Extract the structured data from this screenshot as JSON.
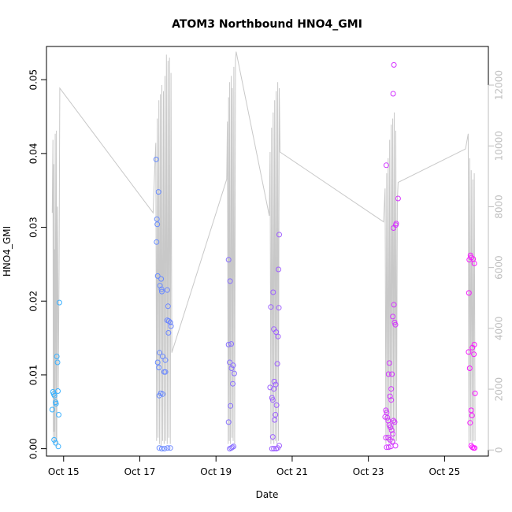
{
  "chart_data": {
    "type": "scatter",
    "title": "ATOM3 Northbound HNO4_GMI",
    "xlabel": "Date",
    "ylabel": "HNO4_GMI",
    "xlim": [
      14.55,
      26.15
    ],
    "ylim": [
      -0.001,
      0.0545
    ],
    "y2lim": [
      -200,
      13270
    ],
    "x_tick_labels": [
      "Oct 15",
      "Oct 17",
      "Oct 19",
      "Oct 21",
      "Oct 23",
      "Oct 25"
    ],
    "x_tick_values": [
      15,
      17,
      19,
      21,
      23,
      25
    ],
    "y_tick_labels": [
      "0.00",
      "0.01",
      "0.02",
      "0.03",
      "0.04",
      "0.05"
    ],
    "y_tick_values": [
      0,
      0.01,
      0.02,
      0.03,
      0.04,
      0.05
    ],
    "y2_tick_labels": [
      "0",
      "2000",
      "4000",
      "6000",
      "8000",
      "10000",
      "12000"
    ],
    "y2_tick_values": [
      0,
      2000,
      4000,
      6000,
      8000,
      10000,
      12000
    ],
    "colors": {
      "altitude_line": "#c8c8c8",
      "right_axis": "#bebebe",
      "point_start": "#35b5ff",
      "point_end": "#ff10ff"
    },
    "series": [
      {
        "name": "HNO4_GMI",
        "points": [
          [
            14.72,
            0.0077
          ],
          [
            14.74,
            0.0074
          ],
          [
            14.76,
            0.0072
          ],
          [
            14.7,
            0.0053
          ],
          [
            14.79,
            0.0063
          ],
          [
            14.8,
            0.0061
          ],
          [
            14.82,
            0.0125
          ],
          [
            14.84,
            0.0117
          ],
          [
            14.85,
            0.0078
          ],
          [
            14.87,
            0.0046
          ],
          [
            14.89,
            0.0198
          ],
          [
            14.75,
            0.0012
          ],
          [
            14.79,
            0.0008
          ],
          [
            14.86,
            0.0003
          ],
          [
            17.43,
            0.0392
          ],
          [
            17.45,
            0.0311
          ],
          [
            17.46,
            0.0304
          ],
          [
            17.44,
            0.028
          ],
          [
            17.49,
            0.0348
          ],
          [
            17.47,
            0.0234
          ],
          [
            17.56,
            0.023
          ],
          [
            17.53,
            0.0221
          ],
          [
            17.57,
            0.0216
          ],
          [
            17.72,
            0.0215
          ],
          [
            17.58,
            0.0213
          ],
          [
            17.74,
            0.0193
          ],
          [
            17.72,
            0.0174
          ],
          [
            17.76,
            0.0173
          ],
          [
            17.8,
            0.0171
          ],
          [
            17.82,
            0.0166
          ],
          [
            17.75,
            0.0157
          ],
          [
            17.52,
            0.013
          ],
          [
            17.6,
            0.0125
          ],
          [
            17.67,
            0.012
          ],
          [
            17.47,
            0.0117
          ],
          [
            17.5,
            0.011
          ],
          [
            17.64,
            0.0104
          ],
          [
            17.67,
            0.0104
          ],
          [
            17.55,
            0.0075
          ],
          [
            17.51,
            0.0072
          ],
          [
            17.6,
            0.0074
          ],
          [
            17.51,
            0.0001
          ],
          [
            17.58,
            0.0
          ],
          [
            17.65,
            0.0
          ],
          [
            17.73,
            0.0001
          ],
          [
            17.8,
            0.0001
          ],
          [
            19.33,
            0.0256
          ],
          [
            19.37,
            0.0227
          ],
          [
            19.33,
            0.0141
          ],
          [
            19.4,
            0.0142
          ],
          [
            19.36,
            0.0117
          ],
          [
            19.45,
            0.0113
          ],
          [
            19.41,
            0.0109
          ],
          [
            19.48,
            0.0102
          ],
          [
            19.44,
            0.0088
          ],
          [
            19.38,
            0.0058
          ],
          [
            19.33,
            0.0036
          ],
          [
            19.36,
            0.0
          ],
          [
            19.4,
            0.0001
          ],
          [
            19.43,
            0.0002
          ],
          [
            19.46,
            0.0003
          ],
          [
            20.44,
            0.0192
          ],
          [
            20.5,
            0.0212
          ],
          [
            20.64,
            0.0243
          ],
          [
            20.66,
            0.029
          ],
          [
            20.52,
            0.0162
          ],
          [
            20.58,
            0.0158
          ],
          [
            20.63,
            0.0152
          ],
          [
            20.65,
            0.0191
          ],
          [
            20.61,
            0.0115
          ],
          [
            20.53,
            0.0091
          ],
          [
            20.57,
            0.0087
          ],
          [
            20.52,
            0.0081
          ],
          [
            20.42,
            0.0083
          ],
          [
            20.47,
            0.0069
          ],
          [
            20.49,
            0.0066
          ],
          [
            20.59,
            0.0059
          ],
          [
            20.56,
            0.0046
          ],
          [
            20.54,
            0.0039
          ],
          [
            20.49,
            0.0016
          ],
          [
            20.47,
            0.0
          ],
          [
            20.52,
            0.0
          ],
          [
            20.58,
            0.0
          ],
          [
            20.62,
            0.0001
          ],
          [
            20.66,
            0.0004
          ],
          [
            23.47,
            0.0384
          ],
          [
            23.67,
            0.052
          ],
          [
            23.65,
            0.0481
          ],
          [
            23.78,
            0.0339
          ],
          [
            23.66,
            0.0299
          ],
          [
            23.72,
            0.0303
          ],
          [
            23.73,
            0.0305
          ],
          [
            23.67,
            0.0195
          ],
          [
            23.64,
            0.0179
          ],
          [
            23.69,
            0.0171
          ],
          [
            23.71,
            0.0168
          ],
          [
            23.55,
            0.0116
          ],
          [
            23.53,
            0.0101
          ],
          [
            23.62,
            0.0101
          ],
          [
            23.6,
            0.0081
          ],
          [
            23.57,
            0.0071
          ],
          [
            23.6,
            0.0066
          ],
          [
            23.46,
            0.0052
          ],
          [
            23.48,
            0.0049
          ],
          [
            23.44,
            0.0043
          ],
          [
            23.5,
            0.0042
          ],
          [
            23.52,
            0.0038
          ],
          [
            23.66,
            0.0038
          ],
          [
            23.69,
            0.0036
          ],
          [
            23.55,
            0.0032
          ],
          [
            23.58,
            0.0029
          ],
          [
            23.61,
            0.0025
          ],
          [
            23.64,
            0.002
          ],
          [
            23.46,
            0.0015
          ],
          [
            23.52,
            0.0015
          ],
          [
            23.57,
            0.0012
          ],
          [
            23.63,
            0.001
          ],
          [
            23.48,
            0.0002
          ],
          [
            23.53,
            0.0002
          ],
          [
            23.59,
            0.0003
          ],
          [
            23.71,
            0.0004
          ],
          [
            25.68,
            0.0262
          ],
          [
            25.7,
            0.0259
          ],
          [
            25.65,
            0.0256
          ],
          [
            25.75,
            0.0257
          ],
          [
            25.78,
            0.0251
          ],
          [
            25.64,
            0.0211
          ],
          [
            25.78,
            0.0141
          ],
          [
            25.73,
            0.0137
          ],
          [
            25.63,
            0.0131
          ],
          [
            25.77,
            0.0128
          ],
          [
            25.66,
            0.0109
          ],
          [
            25.8,
            0.0075
          ],
          [
            25.7,
            0.0052
          ],
          [
            25.72,
            0.0045
          ],
          [
            25.67,
            0.0035
          ],
          [
            25.7,
            0.0004
          ],
          [
            25.73,
            0.0002
          ],
          [
            25.76,
            0.0001
          ],
          [
            25.79,
            0.0001
          ]
        ]
      }
    ],
    "altitude_series": {
      "name": "altitude",
      "x": [
        14.7,
        14.72,
        14.73,
        14.74,
        14.75,
        14.76,
        14.77,
        14.78,
        14.8,
        14.81,
        14.82,
        14.83,
        14.84,
        14.86,
        14.88,
        14.9,
        17.35,
        17.4,
        17.42,
        17.44,
        17.46,
        17.48,
        17.5,
        17.52,
        17.54,
        17.56,
        17.58,
        17.6,
        17.62,
        17.64,
        17.66,
        17.68,
        17.7,
        17.72,
        17.74,
        17.76,
        17.78,
        17.8,
        17.82,
        17.84,
        19.28,
        19.3,
        19.32,
        19.33,
        19.35,
        19.36,
        19.38,
        19.4,
        19.42,
        19.43,
        19.45,
        19.47,
        19.49,
        19.51,
        19.53,
        20.4,
        20.42,
        20.44,
        20.46,
        20.48,
        20.5,
        20.52,
        20.54,
        20.56,
        20.58,
        20.6,
        20.62,
        20.64,
        20.66,
        20.68,
        23.4,
        23.44,
        23.46,
        23.48,
        23.5,
        23.52,
        23.54,
        23.56,
        23.58,
        23.6,
        23.62,
        23.64,
        23.66,
        23.68,
        23.7,
        23.72,
        23.74,
        23.76,
        23.78,
        25.55,
        25.62,
        25.64,
        25.66,
        25.68,
        25.7,
        25.72,
        25.74,
        25.76,
        25.78,
        25.8
      ],
      "values": [
        7800,
        10200,
        300,
        9400,
        600,
        6600,
        200,
        10400,
        300,
        10500,
        100,
        4500,
        8000,
        2000,
        6000,
        11900,
        7800,
        9500,
        10100,
        300,
        10900,
        400,
        11500,
        200,
        11700,
        100,
        12000,
        300,
        11800,
        200,
        12300,
        300,
        13000,
        200,
        12800,
        400,
        12900,
        200,
        12400,
        3200,
        8900,
        10800,
        200,
        11600,
        300,
        12100,
        200,
        12300,
        400,
        11900,
        300,
        12600,
        200,
        12800,
        13100,
        7700,
        9800,
        200,
        10600,
        300,
        11100,
        200,
        11500,
        300,
        11800,
        200,
        12100,
        300,
        11900,
        9800,
        7500,
        8600,
        200,
        9100,
        300,
        9600,
        200,
        10200,
        300,
        10700,
        200,
        10900,
        300,
        11100,
        200,
        10500,
        300,
        8200,
        8800,
        9900,
        10400,
        200,
        9600,
        300,
        9200,
        200,
        8900,
        300,
        9100,
        300
      ]
    }
  }
}
